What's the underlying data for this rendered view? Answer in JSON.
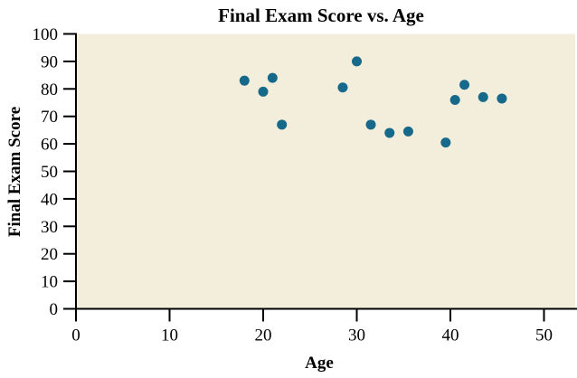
{
  "chart_data": {
    "type": "scatter",
    "title": "Final Exam Score vs. Age",
    "xlabel": "Age",
    "ylabel": "Final Exam Score",
    "xlim": [
      0,
      53.3
    ],
    "ylim": [
      0,
      100
    ],
    "xticks": [
      0,
      10,
      20,
      30,
      40,
      50
    ],
    "yticks": [
      0,
      10,
      20,
      30,
      40,
      50,
      60,
      70,
      80,
      90,
      100
    ],
    "grid": false,
    "legend": false,
    "points": [
      [
        18,
        83
      ],
      [
        20,
        79
      ],
      [
        21,
        84
      ],
      [
        22,
        67
      ],
      [
        28.5,
        80.5
      ],
      [
        30,
        90
      ],
      [
        31.5,
        67
      ],
      [
        33.5,
        64
      ],
      [
        35.5,
        64.5
      ],
      [
        39.5,
        60.5
      ],
      [
        40.5,
        76
      ],
      [
        41.5,
        81.5
      ],
      [
        43.5,
        77
      ],
      [
        45.5,
        76.5
      ]
    ],
    "marker_shape": "circle",
    "marker_color": "#16698a",
    "plot_bg_color": "#f3eedc",
    "axis_color": "#000000",
    "text_color": "#000000",
    "page_bg_color": "#ffffff"
  }
}
